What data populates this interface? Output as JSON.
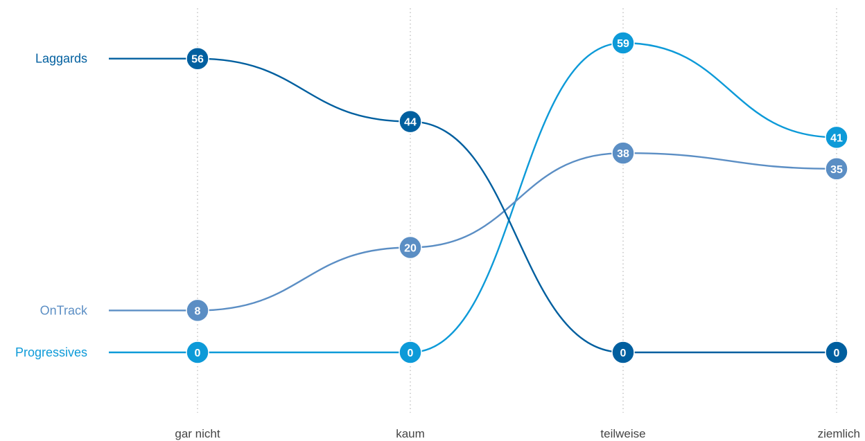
{
  "chart_data": {
    "type": "line",
    "categories": [
      "gar nicht",
      "kaum",
      "teilweise",
      "ziemlich"
    ],
    "series": [
      {
        "name": "Laggards",
        "values": [
          56,
          44,
          0,
          0
        ],
        "color": "#005f9f"
      },
      {
        "name": "OnTrack",
        "values": [
          8,
          20,
          38,
          35
        ],
        "color": "#5b8ec4"
      },
      {
        "name": "Progressives",
        "values": [
          0,
          0,
          59,
          41
        ],
        "color": "#0d9ad8"
      }
    ],
    "ylim": [
      0,
      59
    ],
    "grid": "vertical dotted lines at categories",
    "legend": "left"
  }
}
